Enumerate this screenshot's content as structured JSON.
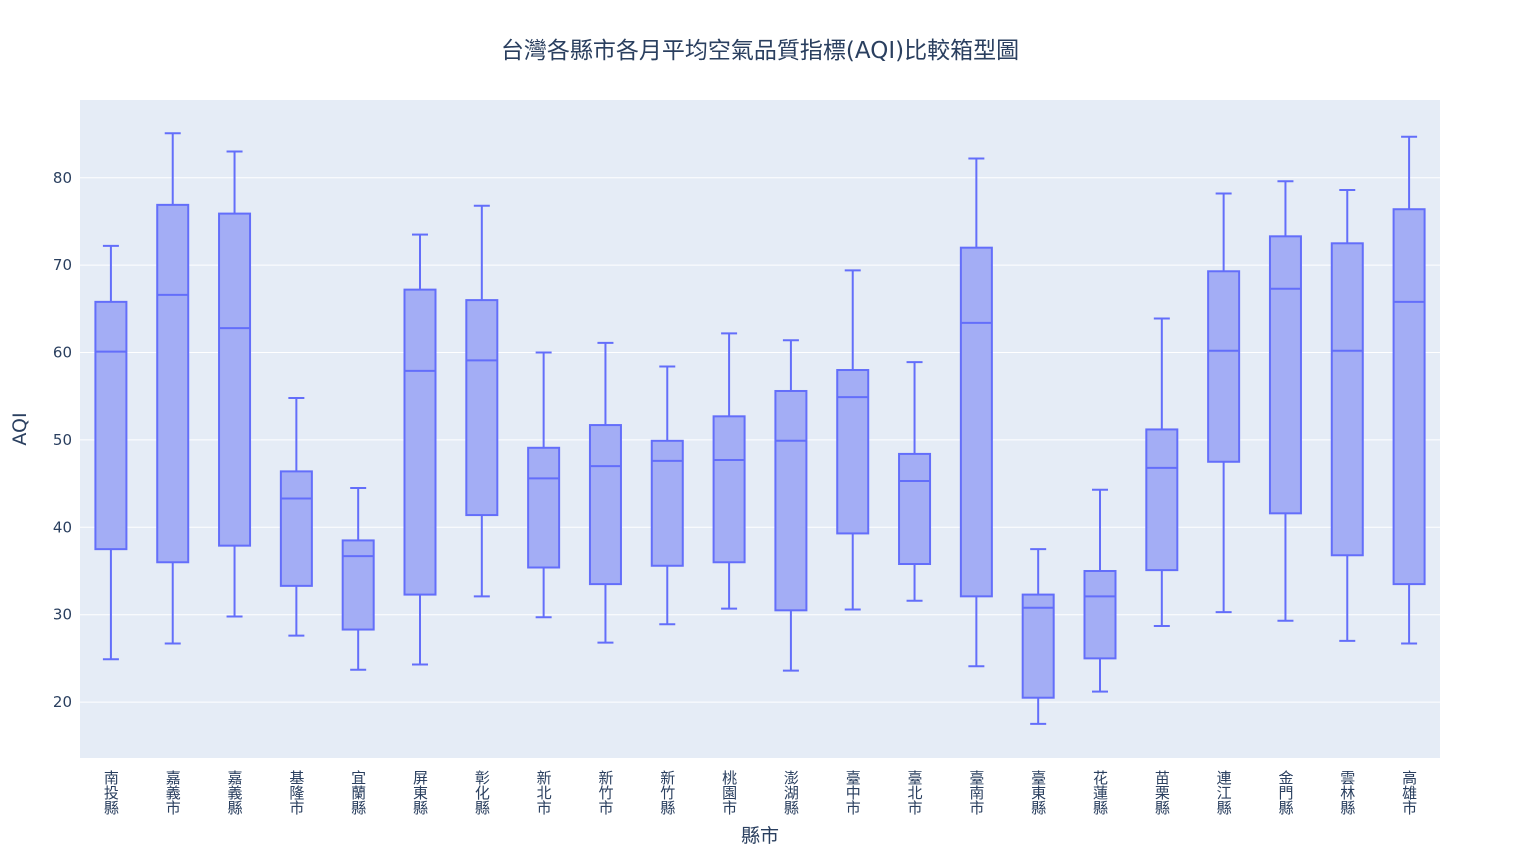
{
  "chart_data": {
    "type": "box",
    "title": "台灣各縣市各月平均空氣品質指標(AQI)比較箱型圖",
    "xlabel": "縣市",
    "ylabel": "AQI",
    "ylim": [
      13.6,
      88.9
    ],
    "yticks": [
      20,
      30,
      40,
      50,
      60,
      70,
      80
    ],
    "grid": true,
    "legend": "none",
    "colors": {
      "plot_bg": "#E5ECF6",
      "grid": "#ffffff",
      "box_fill": "#A3ADF5",
      "box_line": "#636EFA",
      "text": "#2A3F5F"
    },
    "categories": [
      "南投縣",
      "嘉義市",
      "嘉義縣",
      "基隆市",
      "宜蘭縣",
      "屏東縣",
      "彰化縣",
      "新北市",
      "新竹市",
      "新竹縣",
      "桃園市",
      "澎湖縣",
      "臺中市",
      "臺北市",
      "臺南市",
      "臺東縣",
      "花蓮縣",
      "苗栗縣",
      "連江縣",
      "金門縣",
      "雲林縣",
      "高雄市"
    ],
    "boxes": [
      {
        "min": 24.9,
        "q1": 37.5,
        "median": 60.1,
        "q3": 65.8,
        "max": 72.2
      },
      {
        "min": 26.7,
        "q1": 36.0,
        "median": 66.6,
        "q3": 76.9,
        "max": 85.1
      },
      {
        "min": 29.8,
        "q1": 37.9,
        "median": 62.8,
        "q3": 75.9,
        "max": 83.0
      },
      {
        "min": 27.6,
        "q1": 33.3,
        "median": 43.3,
        "q3": 46.4,
        "max": 54.8
      },
      {
        "min": 23.7,
        "q1": 28.3,
        "median": 36.7,
        "q3": 38.5,
        "max": 44.5
      },
      {
        "min": 24.3,
        "q1": 32.3,
        "median": 57.9,
        "q3": 67.2,
        "max": 73.5
      },
      {
        "min": 32.1,
        "q1": 41.4,
        "median": 59.1,
        "q3": 66.0,
        "max": 76.8
      },
      {
        "min": 29.7,
        "q1": 35.4,
        "median": 45.6,
        "q3": 49.1,
        "max": 60.0
      },
      {
        "min": 26.8,
        "q1": 33.5,
        "median": 47.0,
        "q3": 51.7,
        "max": 61.1
      },
      {
        "min": 28.9,
        "q1": 35.6,
        "median": 47.6,
        "q3": 49.9,
        "max": 58.4
      },
      {
        "min": 30.7,
        "q1": 36.0,
        "median": 47.7,
        "q3": 52.7,
        "max": 62.2
      },
      {
        "min": 23.6,
        "q1": 30.5,
        "median": 49.9,
        "q3": 55.6,
        "max": 61.4
      },
      {
        "min": 30.6,
        "q1": 39.3,
        "median": 54.9,
        "q3": 58.0,
        "max": 69.4
      },
      {
        "min": 31.6,
        "q1": 35.8,
        "median": 45.3,
        "q3": 48.4,
        "max": 58.9
      },
      {
        "min": 24.1,
        "q1": 32.1,
        "median": 63.4,
        "q3": 72.0,
        "max": 82.2
      },
      {
        "min": 17.5,
        "q1": 20.5,
        "median": 30.8,
        "q3": 32.3,
        "max": 37.5
      },
      {
        "min": 21.2,
        "q1": 25.0,
        "median": 32.1,
        "q3": 35.0,
        "max": 44.3
      },
      {
        "min": 28.7,
        "q1": 35.1,
        "median": 46.8,
        "q3": 51.2,
        "max": 63.9
      },
      {
        "min": 30.3,
        "q1": 47.5,
        "median": 60.2,
        "q3": 69.3,
        "max": 78.2
      },
      {
        "min": 29.3,
        "q1": 41.6,
        "median": 67.3,
        "q3": 73.3,
        "max": 79.6
      },
      {
        "min": 27.0,
        "q1": 36.8,
        "median": 60.2,
        "q3": 72.5,
        "max": 78.6
      },
      {
        "min": 26.7,
        "q1": 33.5,
        "median": 65.8,
        "q3": 76.4,
        "max": 84.7
      }
    ]
  }
}
